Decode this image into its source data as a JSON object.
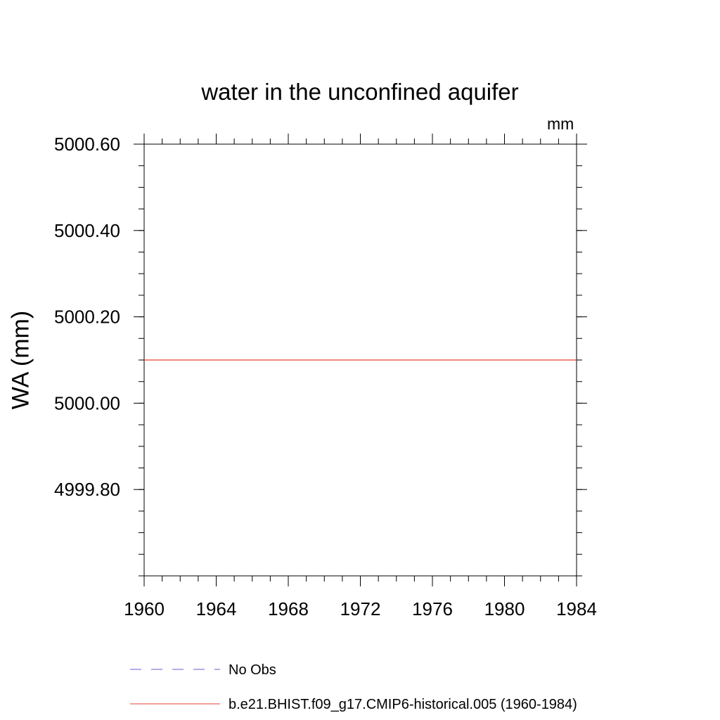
{
  "chart_data": {
    "type": "line",
    "title": "water in the unconfined aquifer",
    "units": "mm",
    "ylabel": "WA  (mm)",
    "xlabel": "",
    "xlim": [
      1960,
      1984
    ],
    "ylim": [
      4999.6,
      5000.6
    ],
    "x_ticks": [
      1960,
      1964,
      1968,
      1972,
      1976,
      1980,
      1984
    ],
    "x_tick_labels": [
      "1960",
      "1964",
      "1968",
      "1972",
      "1976",
      "1980",
      "1984"
    ],
    "y_ticks": [
      4999.8,
      5000.0,
      5000.2,
      5000.4,
      5000.6
    ],
    "y_tick_labels": [
      "4999.80",
      "5000.00",
      "5000.20",
      "5000.40",
      "5000.60"
    ],
    "y_minor_step": 0.05,
    "x_minor_step": 1,
    "grid": false,
    "legend_position": "bottom",
    "series": [
      {
        "name": "No Obs",
        "color": "#6b5bd6",
        "style": "dashed",
        "x": [],
        "values": []
      },
      {
        "name": "b.e21.BHIST.f09_g17.CMIP6-historical.005 (1960-1984)",
        "color": "#e8403a",
        "style": "solid",
        "x": [
          1960,
          1984
        ],
        "values": [
          5000.1,
          5000.1
        ]
      }
    ]
  }
}
